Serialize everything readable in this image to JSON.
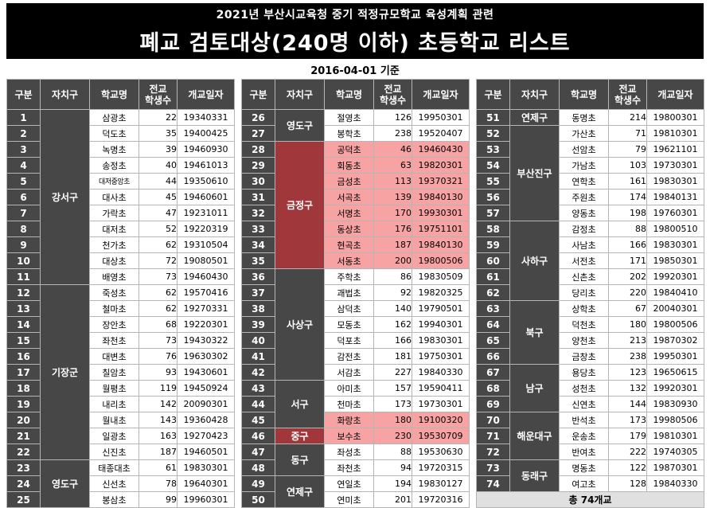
{
  "header": {
    "subtitle": "2021년 부산시교육청 중기 적정규모학교 육성계획 관련",
    "title": "폐교 검토대상(240명 이하) 초등학교 리스트",
    "base_date": "2016-04-01 기준"
  },
  "columns": {
    "no": "구분",
    "district": "자치구",
    "school": "학교명",
    "students_line1": "전교",
    "students_line2": "학생수",
    "open_date": "개교일자"
  },
  "tables": [
    {
      "rows": [
        {
          "no": "1",
          "school": "삼광초",
          "students": "22",
          "date": "19340331"
        },
        {
          "no": "2",
          "school": "덕도초",
          "students": "35",
          "date": "19400425"
        },
        {
          "no": "3",
          "school": "녹명초",
          "students": "39",
          "date": "19460930"
        },
        {
          "no": "4",
          "school": "송정초",
          "students": "40",
          "date": "19461013"
        },
        {
          "no": "5",
          "school": "대저중앙초",
          "students": "44",
          "date": "19350610"
        },
        {
          "no": "6",
          "school": "대사초",
          "students": "45",
          "date": "19460601"
        },
        {
          "no": "7",
          "school": "가락초",
          "students": "47",
          "date": "19231011"
        },
        {
          "no": "8",
          "school": "대저초",
          "students": "52",
          "date": "19220319"
        },
        {
          "no": "9",
          "school": "천가초",
          "students": "62",
          "date": "19310504"
        },
        {
          "no": "10",
          "school": "대상초",
          "students": "72",
          "date": "19080501"
        },
        {
          "no": "11",
          "school": "배영초",
          "students": "73",
          "date": "19460430"
        },
        {
          "no": "12",
          "school": "죽성초",
          "students": "62",
          "date": "19570416"
        },
        {
          "no": "13",
          "school": "철마초",
          "students": "62",
          "date": "19270331"
        },
        {
          "no": "14",
          "school": "장안초",
          "students": "68",
          "date": "19220301"
        },
        {
          "no": "15",
          "school": "좌천초",
          "students": "73",
          "date": "19430322"
        },
        {
          "no": "16",
          "school": "대변초",
          "students": "76",
          "date": "19630302"
        },
        {
          "no": "17",
          "school": "칠암초",
          "students": "93",
          "date": "19430601"
        },
        {
          "no": "18",
          "school": "월평초",
          "students": "119",
          "date": "19450924"
        },
        {
          "no": "19",
          "school": "내리초",
          "students": "142",
          "date": "20090301"
        },
        {
          "no": "20",
          "school": "월내초",
          "students": "143",
          "date": "19360428"
        },
        {
          "no": "21",
          "school": "일광초",
          "students": "163",
          "date": "19270423"
        },
        {
          "no": "22",
          "school": "신진초",
          "students": "187",
          "date": "19460501"
        },
        {
          "no": "23",
          "school": "태종대초",
          "students": "61",
          "date": "19830301"
        },
        {
          "no": "24",
          "school": "신선초",
          "students": "78",
          "date": "19640301"
        },
        {
          "no": "25",
          "school": "봉삼초",
          "students": "99",
          "date": "19960301"
        }
      ],
      "districts": [
        {
          "name": "강서구",
          "span": 11
        },
        {
          "name": "기장군",
          "span": 11
        },
        {
          "name": "영도구",
          "span": 3
        }
      ]
    },
    {
      "rows": [
        {
          "no": "26",
          "school": "절영초",
          "students": "126",
          "date": "19950301"
        },
        {
          "no": "27",
          "school": "봉학초",
          "students": "238",
          "date": "19520407"
        },
        {
          "no": "28",
          "school": "공덕초",
          "students": "46",
          "date": "19460430",
          "hl": true
        },
        {
          "no": "29",
          "school": "회동초",
          "students": "63",
          "date": "19820301",
          "hl": true
        },
        {
          "no": "30",
          "school": "금성초",
          "students": "113",
          "date": "19370321",
          "hl": true
        },
        {
          "no": "31",
          "school": "서곡초",
          "students": "139",
          "date": "19840130",
          "hl": true
        },
        {
          "no": "32",
          "school": "서명초",
          "students": "170",
          "date": "19930301",
          "hl": true
        },
        {
          "no": "33",
          "school": "동상초",
          "students": "176",
          "date": "19751101",
          "hl": true
        },
        {
          "no": "34",
          "school": "현곡초",
          "students": "187",
          "date": "19840130",
          "hl": true
        },
        {
          "no": "35",
          "school": "서동초",
          "students": "200",
          "date": "19800506",
          "hl": true
        },
        {
          "no": "36",
          "school": "주학초",
          "students": "86",
          "date": "19830509"
        },
        {
          "no": "37",
          "school": "괘법초",
          "students": "92",
          "date": "19820325"
        },
        {
          "no": "38",
          "school": "삼덕초",
          "students": "140",
          "date": "19790501"
        },
        {
          "no": "39",
          "school": "모동초",
          "students": "162",
          "date": "19940301"
        },
        {
          "no": "40",
          "school": "덕포초",
          "students": "166",
          "date": "19830301"
        },
        {
          "no": "41",
          "school": "감전초",
          "students": "181",
          "date": "19750301"
        },
        {
          "no": "42",
          "school": "서감초",
          "students": "227",
          "date": "19840330"
        },
        {
          "no": "43",
          "school": "아미초",
          "students": "157",
          "date": "19590411"
        },
        {
          "no": "44",
          "school": "천마초",
          "students": "173",
          "date": "19730301"
        },
        {
          "no": "45",
          "school": "화랑초",
          "students": "180",
          "date": "19100320",
          "hl": true
        },
        {
          "no": "46",
          "school": "보수초",
          "students": "230",
          "date": "19530709",
          "hl": true
        },
        {
          "no": "47",
          "school": "좌성초",
          "students": "88",
          "date": "19530630"
        },
        {
          "no": "48",
          "school": "좌천초",
          "students": "94",
          "date": "19720315"
        },
        {
          "no": "49",
          "school": "연일초",
          "students": "194",
          "date": "19830127"
        },
        {
          "no": "50",
          "school": "연미초",
          "students": "201",
          "date": "19720316"
        }
      ],
      "districts": [
        {
          "name": "영도구",
          "span": 2
        },
        {
          "name": "금정구",
          "span": 8,
          "hl": true
        },
        {
          "name": "사상구",
          "span": 7
        },
        {
          "name": "서구",
          "span": 3
        },
        {
          "name": "중구",
          "span": 1,
          "hl": true
        },
        {
          "name": "동구",
          "span": 2
        },
        {
          "name": "연제구",
          "span": 2
        }
      ]
    },
    {
      "rows": [
        {
          "no": "51",
          "school": "동명초",
          "students": "214",
          "date": "19800301"
        },
        {
          "no": "52",
          "school": "가산초",
          "students": "71",
          "date": "19810301"
        },
        {
          "no": "53",
          "school": "선암초",
          "students": "79",
          "date": "19621101"
        },
        {
          "no": "54",
          "school": "가남초",
          "students": "103",
          "date": "19730301"
        },
        {
          "no": "55",
          "school": "연학초",
          "students": "161",
          "date": "19830301"
        },
        {
          "no": "56",
          "school": "주원초",
          "students": "174",
          "date": "19840131"
        },
        {
          "no": "57",
          "school": "양동초",
          "students": "198",
          "date": "19760301"
        },
        {
          "no": "58",
          "school": "감정초",
          "students": "88",
          "date": "19800510"
        },
        {
          "no": "59",
          "school": "사남초",
          "students": "166",
          "date": "19830301"
        },
        {
          "no": "60",
          "school": "서전초",
          "students": "171",
          "date": "19850301"
        },
        {
          "no": "61",
          "school": "신촌초",
          "students": "202",
          "date": "19920301"
        },
        {
          "no": "62",
          "school": "당리초",
          "students": "220",
          "date": "19840410"
        },
        {
          "no": "63",
          "school": "상학초",
          "students": "67",
          "date": "20040301"
        },
        {
          "no": "64",
          "school": "덕천초",
          "students": "180",
          "date": "19800506"
        },
        {
          "no": "65",
          "school": "양천초",
          "students": "213",
          "date": "19870302"
        },
        {
          "no": "66",
          "school": "금창초",
          "students": "238",
          "date": "19950301"
        },
        {
          "no": "67",
          "school": "용당초",
          "students": "123",
          "date": "19650615"
        },
        {
          "no": "68",
          "school": "성천초",
          "students": "132",
          "date": "19920301"
        },
        {
          "no": "69",
          "school": "신연초",
          "students": "144",
          "date": "19830930"
        },
        {
          "no": "70",
          "school": "반석초",
          "students": "173",
          "date": "19980506"
        },
        {
          "no": "71",
          "school": "운송초",
          "students": "179",
          "date": "19810301"
        },
        {
          "no": "72",
          "school": "반여초",
          "students": "222",
          "date": "19740305"
        },
        {
          "no": "73",
          "school": "명동초",
          "students": "122",
          "date": "19870301"
        },
        {
          "no": "74",
          "school": "여고초",
          "students": "128",
          "date": "19840330"
        }
      ],
      "districts": [
        {
          "name": "연제구",
          "span": 1
        },
        {
          "name": "부산진구",
          "span": 6
        },
        {
          "name": "사하구",
          "span": 5
        },
        {
          "name": "북구",
          "span": 4
        },
        {
          "name": "남구",
          "span": 3
        },
        {
          "name": "해운대구",
          "span": 3
        },
        {
          "name": "동래구",
          "span": 2
        }
      ],
      "total": "총 74개교"
    }
  ],
  "colors": {
    "header_bg": "#474747",
    "highlight_row": "#f7a3a3",
    "highlight_district": "#a0373a"
  }
}
